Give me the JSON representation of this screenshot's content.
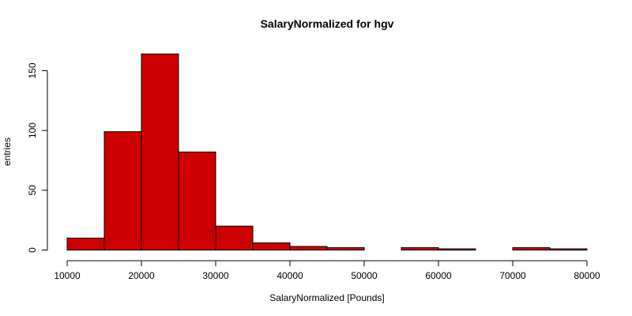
{
  "chart_data": {
    "type": "bar",
    "title": "SalaryNormalized for hgv",
    "xlabel": "SalaryNormalized [Pounds]",
    "ylabel": "entries",
    "bar_color": "#cc0000",
    "xlim": [
      10000,
      80000
    ],
    "ylim": [
      0,
      165
    ],
    "x_ticks": [
      10000,
      20000,
      30000,
      40000,
      50000,
      60000,
      70000,
      80000
    ],
    "y_ticks": [
      0,
      50,
      100,
      150
    ],
    "bins": [
      {
        "start": 10000,
        "end": 15000,
        "count": 10
      },
      {
        "start": 15000,
        "end": 20000,
        "count": 99
      },
      {
        "start": 20000,
        "end": 25000,
        "count": 164
      },
      {
        "start": 25000,
        "end": 30000,
        "count": 82
      },
      {
        "start": 30000,
        "end": 35000,
        "count": 20
      },
      {
        "start": 35000,
        "end": 40000,
        "count": 6
      },
      {
        "start": 40000,
        "end": 45000,
        "count": 3
      },
      {
        "start": 45000,
        "end": 50000,
        "count": 2
      },
      {
        "start": 50000,
        "end": 55000,
        "count": 0
      },
      {
        "start": 55000,
        "end": 60000,
        "count": 2
      },
      {
        "start": 60000,
        "end": 65000,
        "count": 1
      },
      {
        "start": 65000,
        "end": 70000,
        "count": 0
      },
      {
        "start": 70000,
        "end": 75000,
        "count": 2
      },
      {
        "start": 75000,
        "end": 80000,
        "count": 1
      }
    ]
  }
}
